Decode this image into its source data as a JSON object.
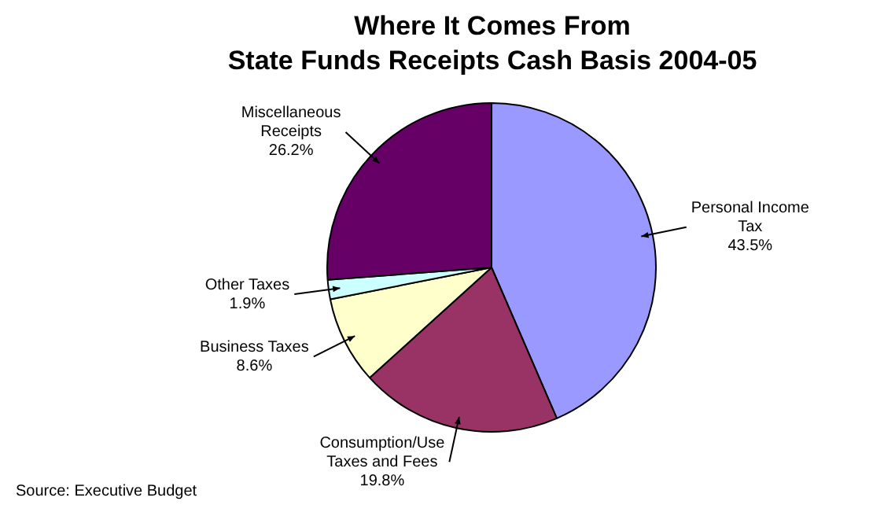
{
  "chart_data": {
    "type": "pie",
    "title": "Where It Comes From\nState Funds Receipts Cash Basis 2004-05",
    "categories": [
      "Personal Income Tax",
      "Consumption/Use Taxes and Fees",
      "Business Taxes",
      "Other Taxes",
      "Miscellaneous Receipts"
    ],
    "values": [
      43.5,
      19.8,
      8.6,
      1.9,
      26.2
    ],
    "value_labels": [
      "43.5%",
      "19.8%",
      "8.6%",
      "1.9%",
      "26.2%"
    ],
    "colors": [
      "#9999ff",
      "#993366",
      "#ffffcc",
      "#ccffff",
      "#660066"
    ],
    "annotations": [
      "Source: Executive Budget"
    ],
    "legend": false
  }
}
